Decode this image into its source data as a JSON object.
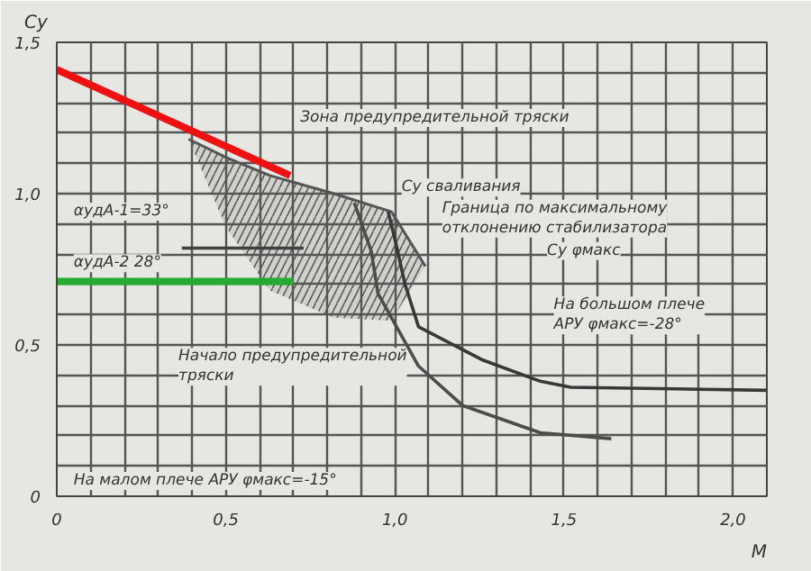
{
  "chart_data": {
    "type": "line",
    "xlabel": "M",
    "ylabel": "Cy",
    "xlim": [
      0,
      2.1
    ],
    "ylim": [
      0,
      1.5
    ],
    "xticks": [
      0,
      {
        "value": 0.1,
        "label": null
      },
      {
        "value": 0.2,
        "label": null
      },
      {
        "value": 0.3,
        "label": null
      },
      {
        "value": 0.4,
        "label": null
      },
      {
        "value": 0.5,
        "label": "0,5"
      },
      {
        "value": 0.6,
        "label": null
      },
      {
        "value": 0.7,
        "label": null
      },
      {
        "value": 0.8,
        "label": null
      },
      {
        "value": 0.9,
        "label": null
      },
      {
        "value": 1.0,
        "label": "1,0"
      },
      {
        "value": 1.1,
        "label": null
      },
      {
        "value": 1.2,
        "label": null
      },
      {
        "value": 1.3,
        "label": null
      },
      {
        "value": 1.4,
        "label": null
      },
      {
        "value": 1.5,
        "label": "1,5"
      },
      {
        "value": 1.6,
        "label": null
      },
      {
        "value": 1.7,
        "label": null
      },
      {
        "value": 1.8,
        "label": null
      },
      {
        "value": 1.9,
        "label": null
      },
      {
        "value": 2.0,
        "label": "2,0"
      }
    ],
    "yticks": [
      0,
      {
        "value": 0.1,
        "label": null
      },
      {
        "value": 0.2,
        "label": null
      },
      {
        "value": 0.3,
        "label": null
      },
      {
        "value": 0.4,
        "label": null
      },
      {
        "value": 0.5,
        "label": "0,5"
      },
      {
        "value": 0.6,
        "label": null
      },
      {
        "value": 0.7,
        "label": null
      },
      {
        "value": 0.8,
        "label": null
      },
      {
        "value": 0.9,
        "label": null
      },
      {
        "value": 1.0,
        "label": "1,0"
      },
      {
        "value": 1.1,
        "label": null
      },
      {
        "value": 1.2,
        "label": null
      },
      {
        "value": 1.3,
        "label": null
      },
      {
        "value": 1.4,
        "label": null
      },
      {
        "value": 1.5,
        "label": "1,5"
      }
    ],
    "grid": true,
    "series": [
      {
        "color": "#555555",
        "x": [
          0.39,
          0.5,
          0.63,
          0.82,
          0.99,
          1.09
        ],
        "values": [
          1.18,
          1.12,
          1.06,
          1.0,
          0.94,
          0.76
        ],
        "lower": [
          1.18,
          0.89,
          0.68,
          0.59,
          0.58,
          0.76
        ],
        "upper": [
          1.18,
          1.12,
          1.06,
          1.0,
          0.94,
          0.76
        ]
      },
      {
        "color": "#ee1111",
        "x": [
          0.0,
          0.69
        ],
        "values": [
          1.41,
          1.06
        ]
      },
      {
        "color": "#22aa33",
        "x": [
          0.0,
          0.7
        ],
        "values": [
          0.71,
          0.71
        ]
      },
      {
        "color": "#404040",
        "x": [
          0.37,
          0.73
        ],
        "values": [
          0.82,
          0.82
        ]
      },
      {
        "color": "#383838",
        "x": [
          0.98,
          1.0,
          1.03,
          1.07,
          1.26,
          1.43,
          1.52,
          2.1
        ],
        "values": [
          0.94,
          0.85,
          0.7,
          0.56,
          0.45,
          0.38,
          0.36,
          0.35
        ]
      },
      {
        "color": "#4c4c4c",
        "x": [
          0.88,
          0.93,
          0.95,
          1.07,
          1.2,
          1.43,
          1.64
        ],
        "values": [
          0.97,
          0.81,
          0.67,
          0.43,
          0.3,
          0.21,
          0.19
        ]
      }
    ],
    "annotations": [
      "Зона предупредительной тряски",
      "Cу сваливания",
      "Граница по максимальному\nотклонению стабилизатора",
      "Cу φмакс",
      "αудА-1=33°",
      "αудА-2 28°",
      "Начало предупредительной\nтряски",
      "На большом плече\nАРУ φмакс=-28°",
      "На малом плече АРУ φмакс=-15°"
    ]
  }
}
